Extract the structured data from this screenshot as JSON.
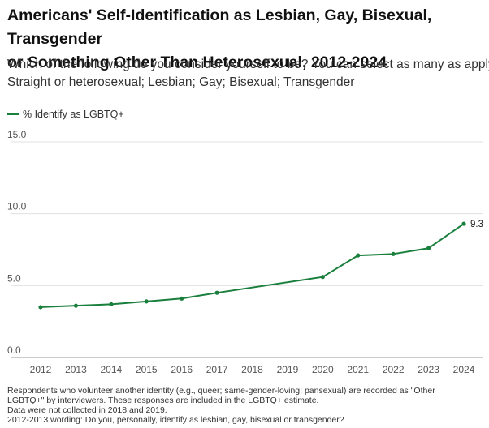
{
  "title_lines": [
    "Americans' Self-Identification as Lesbian, Gay, Bisexual, Transgender",
    "or Something Other Than Heterosexual, 2012-2024"
  ],
  "subtitle_lines": [
    "Which of the following do you consider yourself to be? You can select as many as apply.",
    "Straight or heterosexual; Lesbian; Gay; Bisexual; Transgender"
  ],
  "colors": {
    "series": "#1a7f3c",
    "grid": "#e0e0e0",
    "axis": "#9a9a9a"
  },
  "notes": [
    "Respondents who volunteer another identity (e.g., queer; same-gender-loving; pansexual) are recorded as \"Other",
    "LGBTQ+\" by interviewers. These responses are included in the LGBTQ+ estimate.",
    "Data were not collected in 2018 and 2019.",
    "2012-2013 wording: Do you, personally, identify as lesbian, gay, bisexual or transgender?"
  ],
  "chart_data": {
    "type": "line",
    "title": "Americans' Self-Identification as Lesbian, Gay, Bisexual, Transgender or Something Other Than Heterosexual, 2012-2024",
    "xlabel": "",
    "ylabel": "",
    "categories": [
      "2012",
      "2013",
      "2014",
      "2015",
      "2016",
      "2017",
      "2018",
      "2019",
      "2020",
      "2021",
      "2022",
      "2023",
      "2024"
    ],
    "series": [
      {
        "name": "% Identify as LGBTQ+",
        "x": [
          "2012",
          "2013",
          "2014",
          "2015",
          "2016",
          "2017",
          "2020",
          "2021",
          "2022",
          "2023",
          "2024"
        ],
        "values": [
          3.5,
          3.6,
          3.7,
          3.9,
          4.1,
          4.5,
          5.6,
          7.1,
          7.2,
          7.6,
          9.3
        ]
      }
    ],
    "yticks": [
      "0.0",
      "5.0",
      "10.0",
      "15.0"
    ],
    "ylim": [
      0,
      15
    ],
    "grid": true,
    "legend": "top-left",
    "data_labels": [
      {
        "x": "2024",
        "text": "9.3"
      }
    ]
  }
}
